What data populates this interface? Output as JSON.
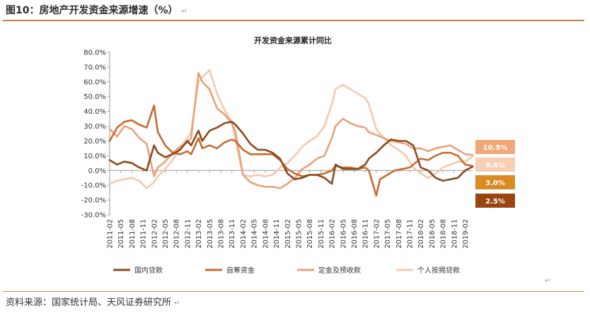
{
  "figure": {
    "label": "图10：房地产开发资金来源增速（%）",
    "return_mark": "↵",
    "source": "资料来源：国家统计局、天风证券研究所"
  },
  "chart_data": {
    "type": "line",
    "title": "开发资金来源累计同比",
    "ylim": [
      -30,
      80
    ],
    "yticks": [
      -30,
      -20,
      -10,
      0,
      10,
      20,
      30,
      40,
      50,
      60,
      70,
      80
    ],
    "ytick_labels": [
      "-30.0%",
      "-20.0%",
      "-10.0%",
      "0.0%",
      "10.0%",
      "20.0%",
      "30.0%",
      "40.0%",
      "50.0%",
      "60.0%",
      "70.0%",
      "80.0%"
    ],
    "x_start": "2011-02",
    "x_end": "2019-04",
    "xticks": [
      "2011-02",
      "2011-05",
      "2011-08",
      "2011-11",
      "2012-02",
      "2012-05",
      "2012-08",
      "2012-11",
      "2013-02",
      "2013-05",
      "2013-08",
      "2013-11",
      "2014-02",
      "2014-05",
      "2014-08",
      "2014-11",
      "2015-02",
      "2015-05",
      "2015-08",
      "2015-11",
      "2016-02",
      "2016-05",
      "2016-08",
      "2016-11",
      "2017-02",
      "2017-05",
      "2017-08",
      "2017-11",
      "2018-02",
      "2018-05",
      "2018-08",
      "2018-11",
      "2019-02"
    ],
    "grid": false,
    "legend_position": "bottom",
    "series": [
      {
        "name": "国内贷款",
        "color": "#8b4a1c",
        "points": [
          [
            "2011-02",
            7
          ],
          [
            "2011-04",
            4
          ],
          [
            "2011-06",
            6
          ],
          [
            "2011-08",
            5
          ],
          [
            "2011-10",
            2
          ],
          [
            "2011-12",
            0
          ],
          [
            "2012-02",
            17
          ],
          [
            "2012-03",
            12
          ],
          [
            "2012-05",
            9
          ],
          [
            "2012-07",
            11
          ],
          [
            "2012-09",
            14
          ],
          [
            "2012-11",
            20
          ],
          [
            "2012-12",
            17
          ],
          [
            "2013-02",
            27
          ],
          [
            "2013-03",
            20
          ],
          [
            "2013-05",
            27
          ],
          [
            "2013-07",
            29
          ],
          [
            "2013-09",
            32
          ],
          [
            "2013-11",
            33
          ],
          [
            "2013-12",
            31
          ],
          [
            "2014-02",
            25
          ],
          [
            "2014-04",
            18
          ],
          [
            "2014-06",
            14
          ],
          [
            "2014-08",
            14
          ],
          [
            "2014-10",
            12
          ],
          [
            "2014-12",
            8
          ],
          [
            "2015-02",
            -2
          ],
          [
            "2015-04",
            -6
          ],
          [
            "2015-06",
            -5
          ],
          [
            "2015-08",
            -3
          ],
          [
            "2015-10",
            -3
          ],
          [
            "2015-12",
            -5
          ],
          [
            "2016-02",
            -9
          ],
          [
            "2016-03",
            4
          ],
          [
            "2016-05",
            1
          ],
          [
            "2016-07",
            1
          ],
          [
            "2016-09",
            1
          ],
          [
            "2016-11",
            4
          ],
          [
            "2016-12",
            8
          ],
          [
            "2017-02",
            12
          ],
          [
            "2017-04",
            17
          ],
          [
            "2017-06",
            21
          ],
          [
            "2017-08",
            20
          ],
          [
            "2017-10",
            20
          ],
          [
            "2017-12",
            17
          ],
          [
            "2018-02",
            2
          ],
          [
            "2018-04",
            0
          ],
          [
            "2018-06",
            -5
          ],
          [
            "2018-08",
            -7
          ],
          [
            "2018-10",
            -6
          ],
          [
            "2018-12",
            -5
          ],
          [
            "2019-02",
            0
          ],
          [
            "2019-04",
            2.5
          ]
        ]
      },
      {
        "name": "自筹资金",
        "color": "#c86b2e",
        "points": [
          [
            "2011-02",
            20
          ],
          [
            "2011-04",
            29
          ],
          [
            "2011-06",
            33
          ],
          [
            "2011-08",
            34
          ],
          [
            "2011-10",
            31
          ],
          [
            "2011-12",
            29
          ],
          [
            "2012-02",
            44
          ],
          [
            "2012-03",
            26
          ],
          [
            "2012-05",
            17
          ],
          [
            "2012-07",
            12
          ],
          [
            "2012-09",
            11
          ],
          [
            "2012-11",
            13
          ],
          [
            "2012-12",
            11
          ],
          [
            "2013-02",
            22
          ],
          [
            "2013-03",
            15
          ],
          [
            "2013-05",
            17
          ],
          [
            "2013-07",
            15
          ],
          [
            "2013-09",
            19
          ],
          [
            "2013-11",
            21
          ],
          [
            "2013-12",
            20
          ],
          [
            "2014-02",
            14
          ],
          [
            "2014-04",
            11
          ],
          [
            "2014-06",
            11
          ],
          [
            "2014-08",
            11
          ],
          [
            "2014-10",
            11
          ],
          [
            "2014-12",
            7
          ],
          [
            "2015-02",
            1
          ],
          [
            "2015-04",
            -2
          ],
          [
            "2015-06",
            -4
          ],
          [
            "2015-08",
            -3
          ],
          [
            "2015-10",
            -3
          ],
          [
            "2015-12",
            -2
          ],
          [
            "2016-02",
            0
          ],
          [
            "2016-03",
            3
          ],
          [
            "2016-05",
            2
          ],
          [
            "2016-07",
            2
          ],
          [
            "2016-09",
            1
          ],
          [
            "2016-11",
            2
          ],
          [
            "2016-12",
            0
          ],
          [
            "2017-02",
            -17
          ],
          [
            "2017-03",
            -6
          ],
          [
            "2017-05",
            -3
          ],
          [
            "2017-07",
            0
          ],
          [
            "2017-09",
            1
          ],
          [
            "2017-11",
            2
          ],
          [
            "2017-12",
            4
          ],
          [
            "2018-02",
            8
          ],
          [
            "2018-04",
            7
          ],
          [
            "2018-06",
            10
          ],
          [
            "2018-08",
            12
          ],
          [
            "2018-10",
            12
          ],
          [
            "2018-12",
            10
          ],
          [
            "2019-02",
            4
          ],
          [
            "2019-04",
            3
          ]
        ]
      },
      {
        "name": "定金及预收款",
        "color": "#e8a27a",
        "points": [
          [
            "2011-02",
            28
          ],
          [
            "2011-04",
            23
          ],
          [
            "2011-06",
            30
          ],
          [
            "2011-08",
            28
          ],
          [
            "2011-10",
            22
          ],
          [
            "2011-12",
            18
          ],
          [
            "2012-02",
            -4
          ],
          [
            "2012-03",
            2
          ],
          [
            "2012-05",
            6
          ],
          [
            "2012-07",
            12
          ],
          [
            "2012-09",
            16
          ],
          [
            "2012-11",
            19
          ],
          [
            "2012-12",
            22
          ],
          [
            "2013-02",
            66
          ],
          [
            "2013-03",
            60
          ],
          [
            "2013-05",
            55
          ],
          [
            "2013-07",
            42
          ],
          [
            "2013-09",
            38
          ],
          [
            "2013-11",
            32
          ],
          [
            "2013-12",
            26
          ],
          [
            "2014-02",
            -3
          ],
          [
            "2014-04",
            -8
          ],
          [
            "2014-06",
            -10
          ],
          [
            "2014-08",
            -11
          ],
          [
            "2014-10",
            -11
          ],
          [
            "2014-12",
            -12
          ],
          [
            "2015-02",
            -9
          ],
          [
            "2015-04",
            -5
          ],
          [
            "2015-06",
            1
          ],
          [
            "2015-08",
            4
          ],
          [
            "2015-10",
            8
          ],
          [
            "2015-12",
            10
          ],
          [
            "2016-02",
            22
          ],
          [
            "2016-03",
            30
          ],
          [
            "2016-05",
            35
          ],
          [
            "2016-07",
            32
          ],
          [
            "2016-09",
            30
          ],
          [
            "2016-11",
            29
          ],
          [
            "2016-12",
            26
          ],
          [
            "2017-02",
            24
          ],
          [
            "2017-04",
            22
          ],
          [
            "2017-06",
            20
          ],
          [
            "2017-08",
            19
          ],
          [
            "2017-10",
            18
          ],
          [
            "2017-12",
            15
          ],
          [
            "2018-02",
            15
          ],
          [
            "2018-04",
            13
          ],
          [
            "2018-06",
            15
          ],
          [
            "2018-08",
            16
          ],
          [
            "2018-10",
            17
          ],
          [
            "2018-12",
            14
          ],
          [
            "2019-02",
            11
          ],
          [
            "2019-04",
            10.5
          ]
        ]
      },
      {
        "name": "个人按揭贷款",
        "color": "#f5c8ad",
        "points": [
          [
            "2011-02",
            -9
          ],
          [
            "2011-04",
            -7
          ],
          [
            "2011-06",
            -6
          ],
          [
            "2011-08",
            -5
          ],
          [
            "2011-10",
            -7
          ],
          [
            "2011-12",
            -12
          ],
          [
            "2012-02",
            -8
          ],
          [
            "2012-03",
            -4
          ],
          [
            "2012-05",
            1
          ],
          [
            "2012-07",
            7
          ],
          [
            "2012-09",
            15
          ],
          [
            "2012-11",
            22
          ],
          [
            "2012-12",
            26
          ],
          [
            "2013-02",
            60
          ],
          [
            "2013-03",
            63
          ],
          [
            "2013-05",
            68
          ],
          [
            "2013-07",
            52
          ],
          [
            "2013-09",
            41
          ],
          [
            "2013-11",
            33
          ],
          [
            "2013-12",
            20
          ],
          [
            "2014-02",
            -3
          ],
          [
            "2014-04",
            -4
          ],
          [
            "2014-06",
            -3
          ],
          [
            "2014-08",
            -4
          ],
          [
            "2014-10",
            -3
          ],
          [
            "2014-12",
            2
          ],
          [
            "2015-02",
            5
          ],
          [
            "2015-04",
            10
          ],
          [
            "2015-06",
            16
          ],
          [
            "2015-08",
            20
          ],
          [
            "2015-10",
            23
          ],
          [
            "2015-12",
            30
          ],
          [
            "2016-02",
            45
          ],
          [
            "2016-03",
            55
          ],
          [
            "2016-05",
            58
          ],
          [
            "2016-07",
            55
          ],
          [
            "2016-09",
            52
          ],
          [
            "2016-11",
            49
          ],
          [
            "2016-12",
            45
          ],
          [
            "2017-02",
            28
          ],
          [
            "2017-04",
            22
          ],
          [
            "2017-06",
            17
          ],
          [
            "2017-08",
            14
          ],
          [
            "2017-10",
            10
          ],
          [
            "2017-12",
            2
          ],
          [
            "2018-02",
            -2
          ],
          [
            "2018-04",
            -5
          ],
          [
            "2018-06",
            -2
          ],
          [
            "2018-08",
            2
          ],
          [
            "2018-10",
            4
          ],
          [
            "2018-12",
            6
          ],
          [
            "2019-02",
            6
          ],
          [
            "2019-04",
            9.4
          ]
        ]
      }
    ],
    "end_labels": [
      {
        "text": "10.5%",
        "color": "#f0a878"
      },
      {
        "text": "9.4%",
        "color": "#f8cfb4"
      },
      {
        "text": "3.0%",
        "color": "#d98a20"
      },
      {
        "text": "2.5%",
        "color": "#9a4510"
      }
    ]
  }
}
